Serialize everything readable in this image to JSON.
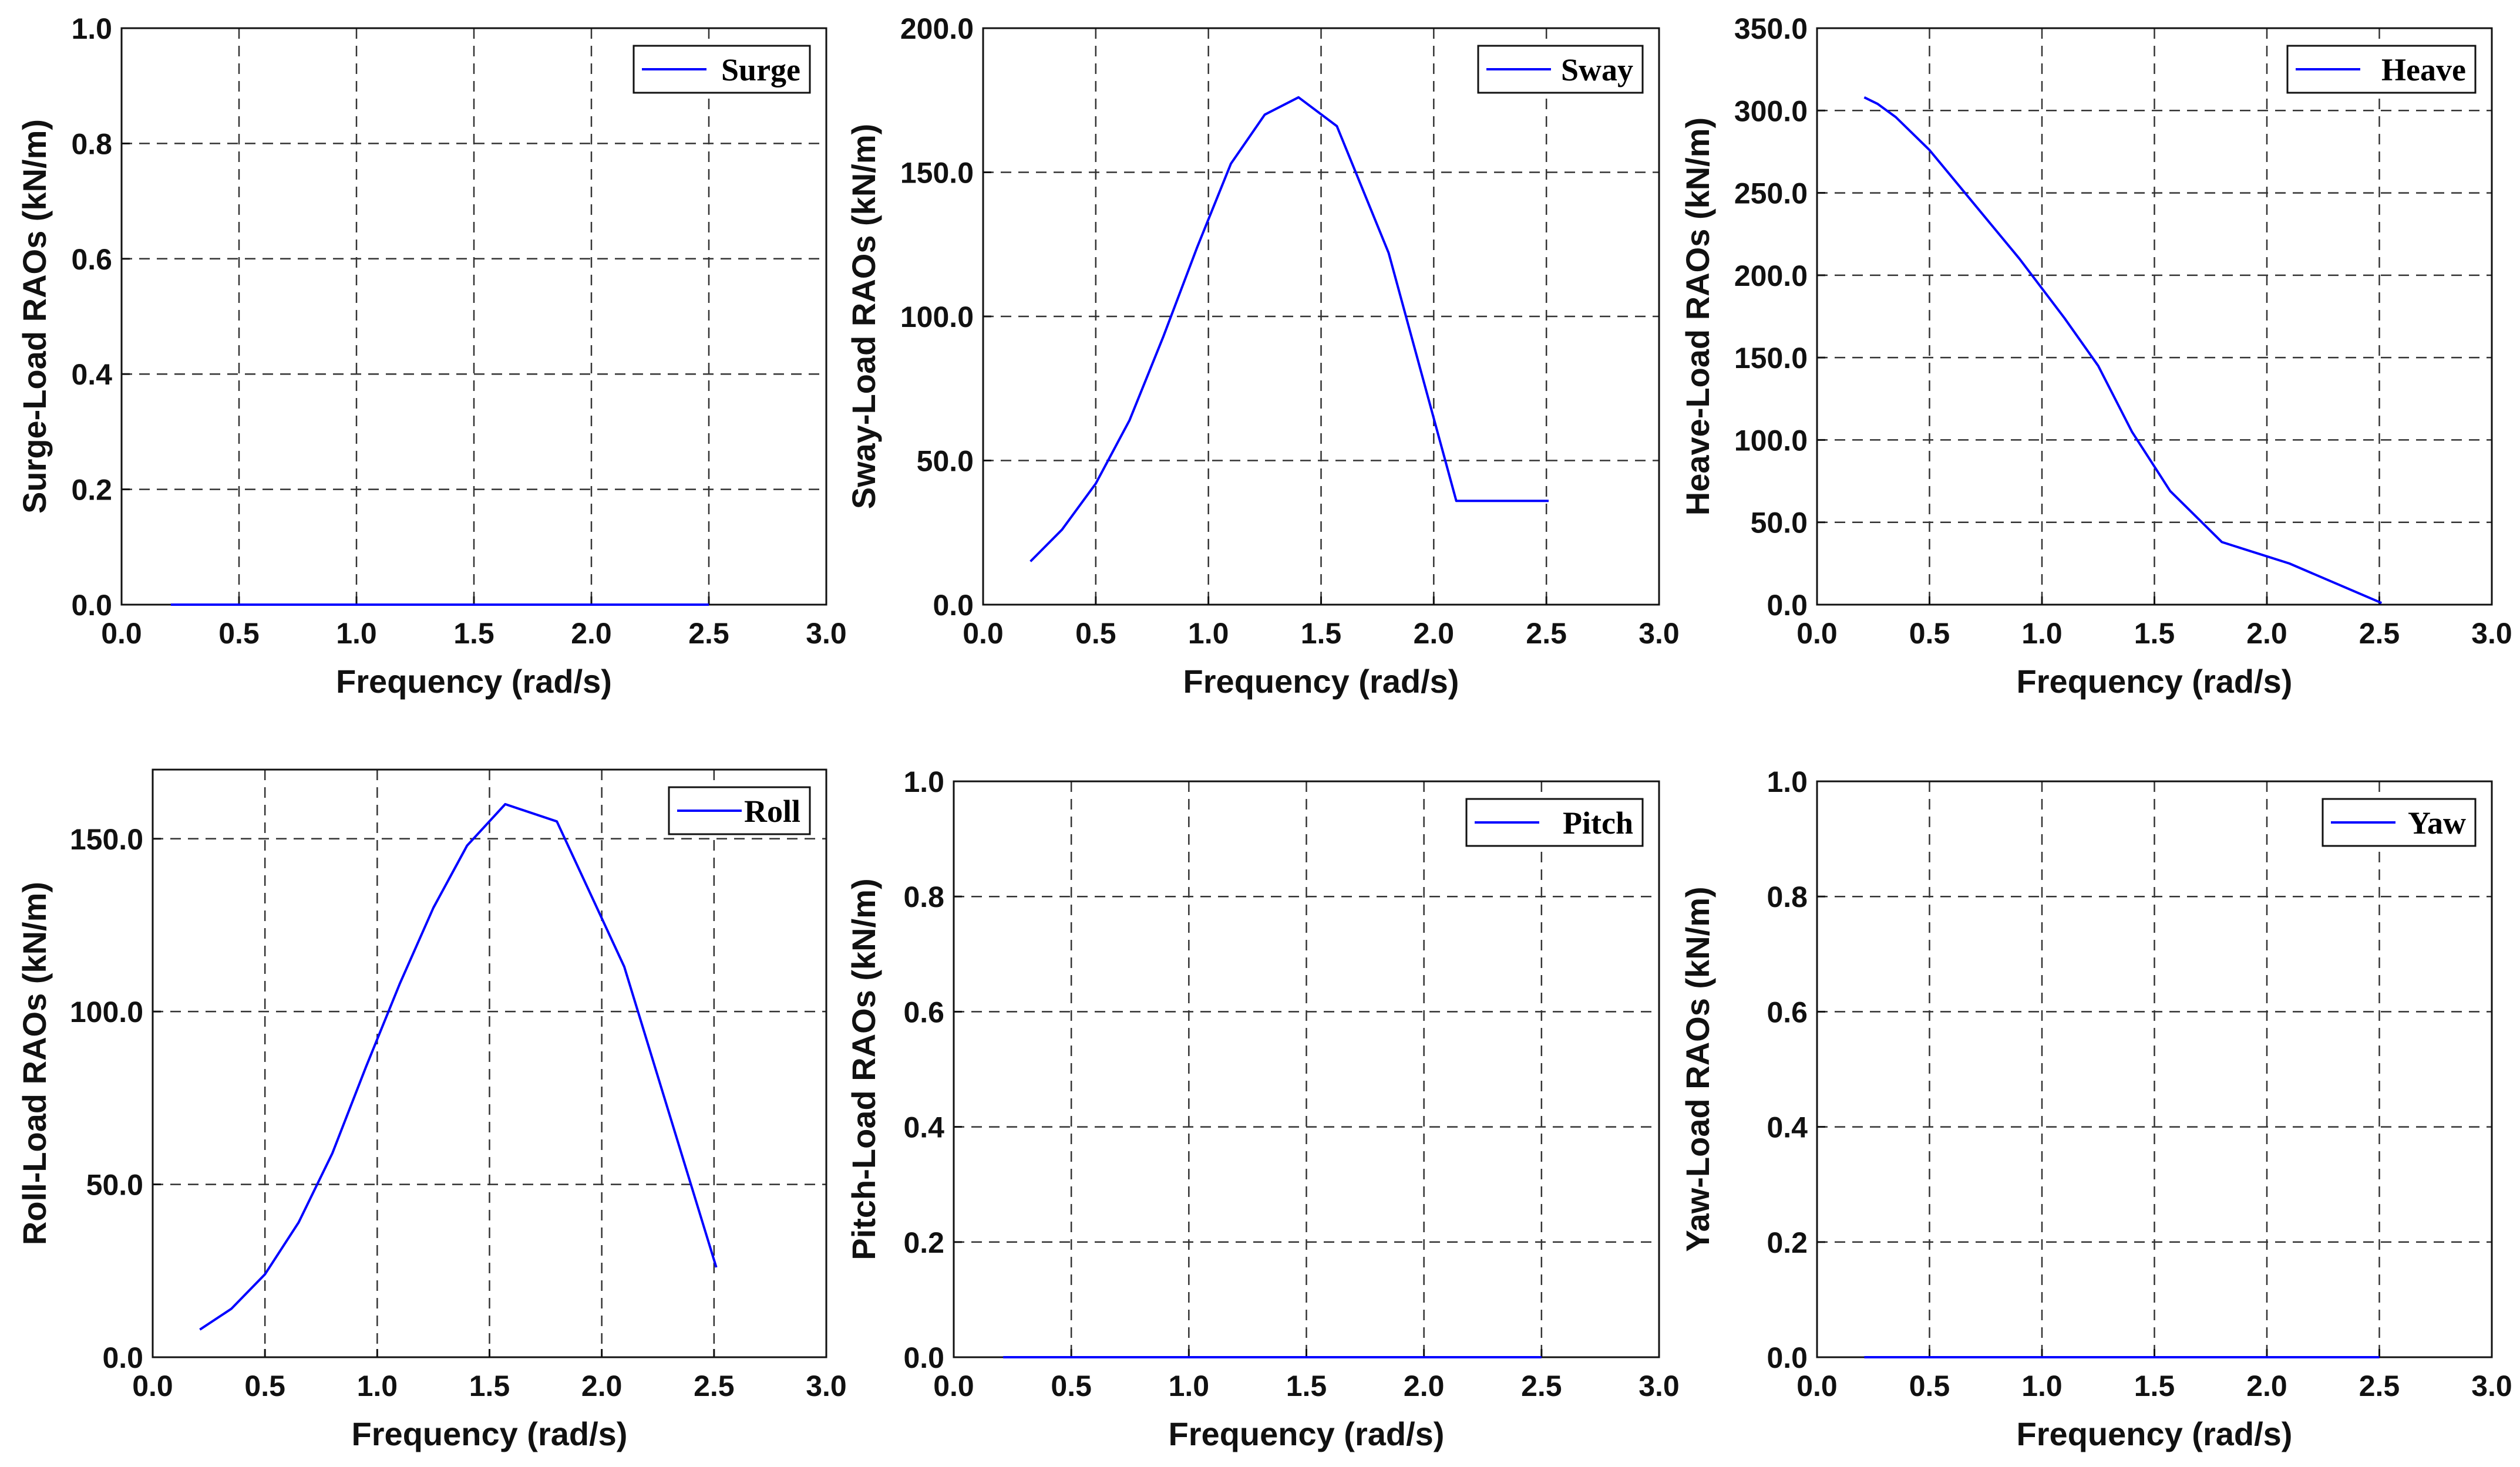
{
  "figure": {
    "line_color": "#0000ff",
    "background": "#ffffff"
  },
  "chart_data": [
    {
      "type": "line",
      "xlabel": "Frequency (rad/s)",
      "ylabel": "Surge-Load RAOs (kN/m)",
      "xlim": [
        0,
        3
      ],
      "ylim": [
        0,
        1
      ],
      "xticks": [
        "0.0",
        "0.5",
        "1.0",
        "1.5",
        "2.0",
        "2.5",
        "3.0"
      ],
      "yticks": [
        "0.0",
        "0.2",
        "0.4",
        "0.6",
        "0.8",
        "1.0"
      ],
      "grid": true,
      "legend_position": "top-right",
      "series": [
        {
          "name": "Surge",
          "color": "#0000ff",
          "x": [
            0.21,
            0.5,
            1.0,
            1.5,
            2.0,
            2.5
          ],
          "y": [
            0,
            0,
            0,
            0,
            0,
            0
          ]
        }
      ]
    },
    {
      "type": "line",
      "xlabel": "Frequency (rad/s)",
      "ylabel": "Sway-Load RAOs (kN/m)",
      "xlim": [
        0,
        3
      ],
      "ylim": [
        0,
        200
      ],
      "xticks": [
        "0.0",
        "0.5",
        "1.0",
        "1.5",
        "2.0",
        "2.5",
        "3.0"
      ],
      "yticks": [
        "0.0",
        "50.0",
        "100.0",
        "150.0",
        "200.0"
      ],
      "grid": true,
      "legend_position": "top-right",
      "series": [
        {
          "name": "Sway",
          "color": "#0000ff",
          "x": [
            0.21,
            0.35,
            0.5,
            0.65,
            0.8,
            0.95,
            1.1,
            1.25,
            1.4,
            1.57,
            1.8,
            2.1,
            2.51
          ],
          "y": [
            15,
            26,
            42,
            64,
            93,
            124,
            153,
            170,
            176,
            166,
            122,
            36,
            36
          ]
        }
      ]
    },
    {
      "type": "line",
      "xlabel": "Frequency (rad/s)",
      "ylabel": "Heave-Load RAOs (kN/m)",
      "xlim": [
        0,
        3
      ],
      "ylim": [
        0,
        350
      ],
      "xticks": [
        "0.0",
        "0.5",
        "1.0",
        "1.5",
        "2.0",
        "2.5",
        "3.0"
      ],
      "yticks": [
        "0.0",
        "50.0",
        "100.0",
        "150.0",
        "200.0",
        "250.0",
        "300.0",
        "350.0"
      ],
      "grid": true,
      "legend_position": "top-right",
      "series": [
        {
          "name": "Heave",
          "color": "#0000ff",
          "x": [
            0.21,
            0.27,
            0.35,
            0.5,
            0.7,
            0.9,
            1.1,
            1.25,
            1.4,
            1.57,
            1.8,
            2.1,
            2.51
          ],
          "y": [
            308,
            304,
            296,
            276,
            243,
            210,
            174,
            145,
            105,
            69,
            38,
            25,
            1
          ]
        }
      ]
    },
    {
      "type": "line",
      "xlabel": "Frequency (rad/s)",
      "ylabel": "Roll-Load RAOs (kN/m)",
      "xlim": [
        0,
        3
      ],
      "ylim": [
        0,
        170
      ],
      "xticks": [
        "0.0",
        "0.5",
        "1.0",
        "1.5",
        "2.0",
        "2.5",
        "3.0"
      ],
      "yticks": [
        "0.0",
        "50.0",
        "100.0",
        "150.0"
      ],
      "grid": true,
      "legend_position": "top-right",
      "series": [
        {
          "name": "Roll",
          "color": "#0000ff",
          "x": [
            0.21,
            0.35,
            0.5,
            0.65,
            0.8,
            0.95,
            1.1,
            1.25,
            1.4,
            1.57,
            1.8,
            2.1,
            2.51
          ],
          "y": [
            8,
            14,
            24,
            39,
            59,
            84,
            108,
            130,
            148,
            160,
            155,
            113,
            26
          ]
        }
      ]
    },
    {
      "type": "line",
      "xlabel": "Frequency (rad/s)",
      "ylabel": "Pitch-Load RAOs (kN/m)",
      "xlim": [
        0,
        3
      ],
      "ylim": [
        0,
        1
      ],
      "xticks": [
        "0.0",
        "0.5",
        "1.0",
        "1.5",
        "2.0",
        "2.5",
        "3.0"
      ],
      "yticks": [
        "0.0",
        "0.2",
        "0.4",
        "0.6",
        "0.8",
        "1.0"
      ],
      "grid": true,
      "legend_position": "top-right",
      "series": [
        {
          "name": "Pitch",
          "color": "#0000ff",
          "x": [
            0.21,
            0.5,
            1.0,
            1.5,
            2.0,
            2.5
          ],
          "y": [
            0,
            0,
            0,
            0,
            0,
            0
          ]
        }
      ]
    },
    {
      "type": "line",
      "xlabel": "Frequency (rad/s)",
      "ylabel": "Yaw-Load RAOs (kN/m)",
      "xlim": [
        0,
        3
      ],
      "ylim": [
        0,
        1
      ],
      "xticks": [
        "0.0",
        "0.5",
        "1.0",
        "1.5",
        "2.0",
        "2.5",
        "3.0"
      ],
      "yticks": [
        "0.0",
        "0.2",
        "0.4",
        "0.6",
        "0.8",
        "1.0"
      ],
      "grid": true,
      "legend_position": "top-right",
      "series": [
        {
          "name": "Yaw",
          "color": "#0000ff",
          "x": [
            0.21,
            0.5,
            1.0,
            1.5,
            2.0,
            2.5
          ],
          "y": [
            0,
            0,
            0,
            0,
            0,
            0
          ]
        }
      ]
    }
  ]
}
